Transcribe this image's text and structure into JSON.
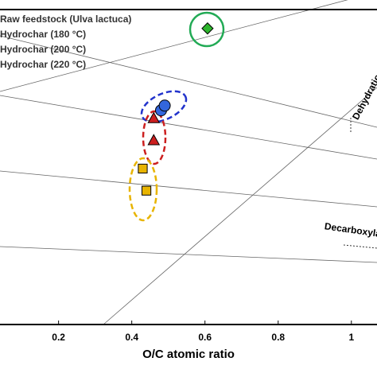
{
  "chart_data": {
    "type": "scatter",
    "xlabel": "O/C atomic ratio",
    "xlim": [
      0.04,
      1.07
    ],
    "xticks": [
      0.2,
      0.4,
      0.6,
      0.8,
      1
    ],
    "ylim": [
      0,
      2
    ],
    "annotations": [
      "Dehydration",
      "Decarboxylation"
    ],
    "series": [
      {
        "name": "Raw feedstock (Ulva lactuca)",
        "color": "#2db52d",
        "marker": "diamond",
        "x": [
          0.607
        ],
        "values": [
          1.88
        ]
      },
      {
        "name": "Hydrochar (180 °C)",
        "color": "#3366dd",
        "marker": "circle",
        "x": [
          0.48,
          0.49
        ],
        "values": [
          1.36,
          1.39
        ]
      },
      {
        "name": "Hydrochar (200 °C)",
        "color": "#cc1f1f",
        "marker": "triangle",
        "x": [
          0.46,
          0.46
        ],
        "values": [
          1.31,
          1.17
        ]
      },
      {
        "name": "Hydrochar (220 °C)",
        "color": "#e8b400",
        "marker": "square",
        "x": [
          0.43,
          0.44
        ],
        "values": [
          0.99,
          0.85
        ]
      }
    ]
  }
}
